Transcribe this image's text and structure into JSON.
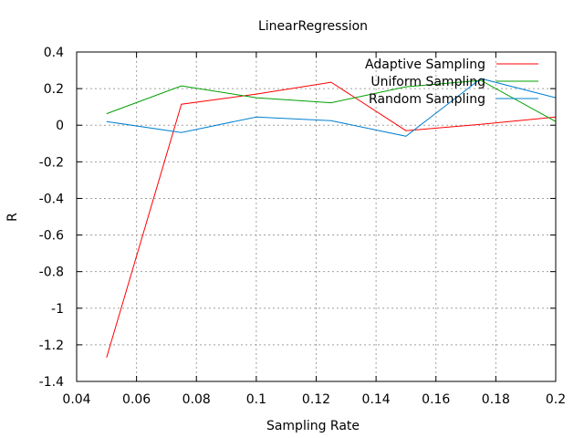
{
  "chart_data": {
    "type": "line",
    "title": "LinearRegression",
    "xlabel": "Sampling Rate",
    "ylabel": "R",
    "xlim": [
      0.04,
      0.2
    ],
    "ylim": [
      -1.4,
      0.4
    ],
    "xticks": [
      0.04,
      0.06,
      0.08,
      0.1,
      0.12,
      0.14,
      0.16,
      0.18,
      0.2
    ],
    "xtick_labels": [
      "0.04",
      "0.06",
      "0.08",
      "0.1",
      "0.12",
      "0.14",
      "0.16",
      "0.18",
      "0.2"
    ],
    "yticks": [
      0.4,
      0.2,
      0,
      -0.2,
      -0.4,
      -0.6,
      -0.8,
      -1,
      -1.2,
      -1.4
    ],
    "ytick_labels": [
      "0.4",
      "0.2",
      "0",
      "-0.2",
      "-0.4",
      "-0.6",
      "-0.8",
      "-1",
      "-1.2",
      "-1.4"
    ],
    "grid": true,
    "legend_position": "top-right",
    "x": [
      0.05,
      0.075,
      0.1,
      0.125,
      0.15,
      0.175,
      0.2
    ],
    "series": [
      {
        "name": "Adaptive Sampling",
        "color": "#ff0000",
        "values": [
          -1.27,
          0.115,
          0.17,
          0.235,
          -0.03,
          0.005,
          0.045
        ]
      },
      {
        "name": "Uniform Sampling",
        "color": "#00a000",
        "values": [
          0.063,
          0.215,
          0.15,
          0.123,
          0.21,
          0.245,
          0.02
        ]
      },
      {
        "name": "Random Sampling",
        "color": "#0080d0",
        "values": [
          0.02,
          -0.04,
          0.045,
          0.025,
          -0.06,
          0.255,
          0.15
        ]
      }
    ]
  }
}
